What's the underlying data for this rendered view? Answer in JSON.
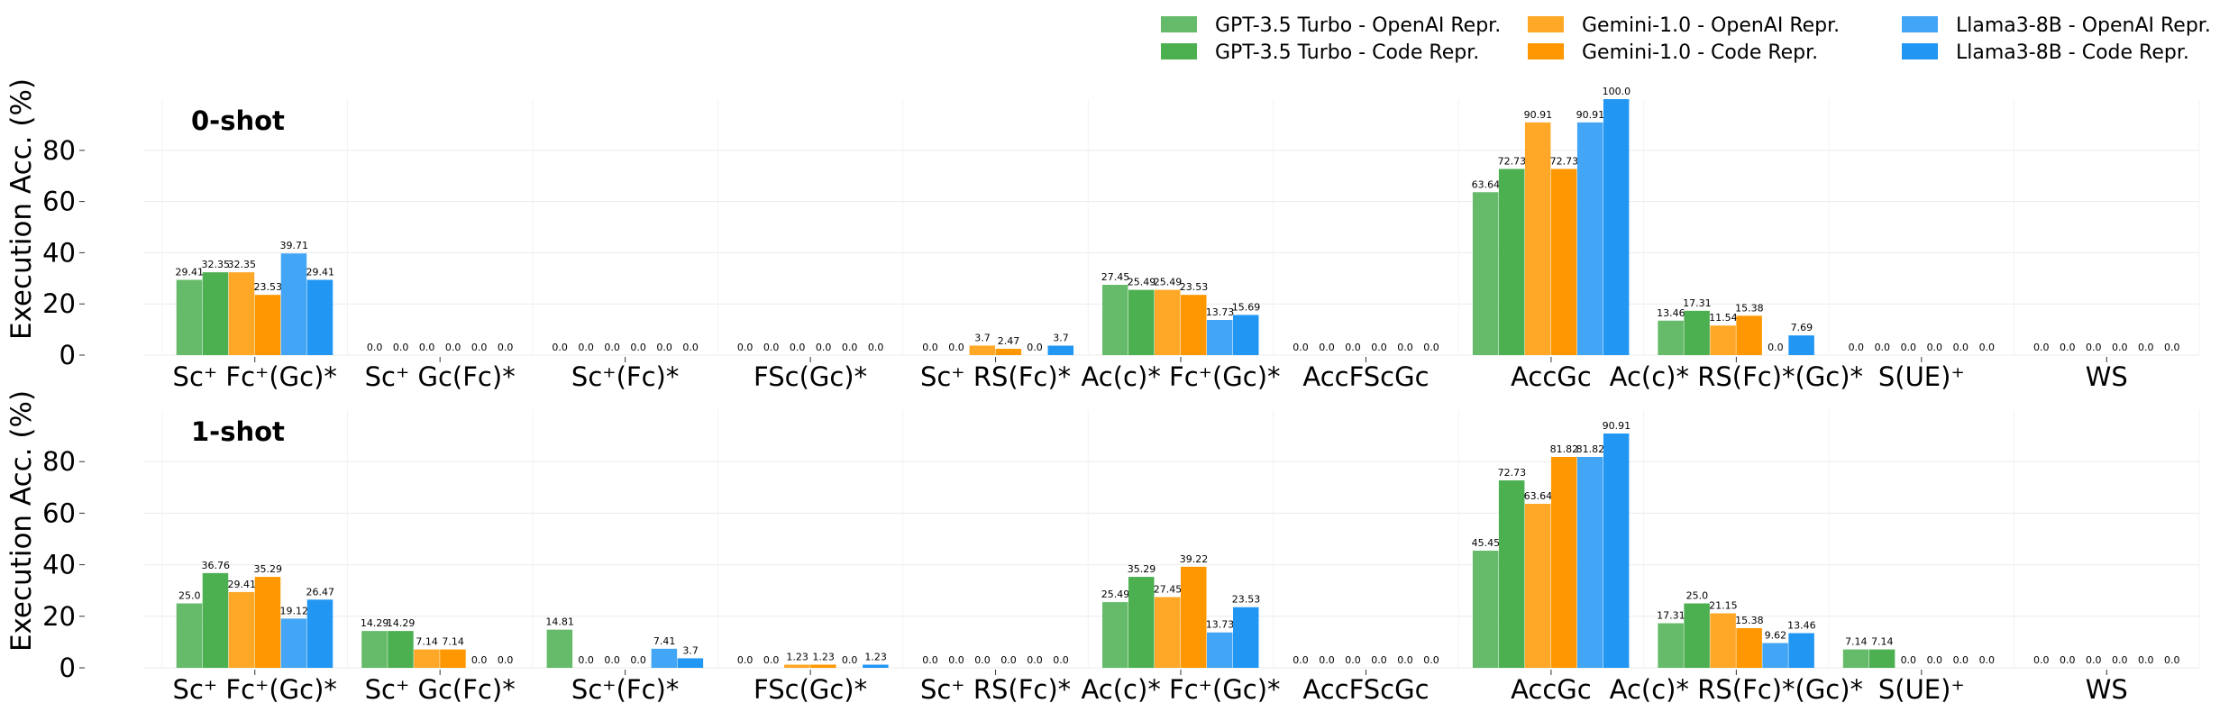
{
  "chart_data": {
    "type": "bar",
    "ylabel": "Execution Acc. (%)",
    "ylim": [
      0,
      100
    ],
    "yticks": [
      0,
      20,
      40,
      60,
      80
    ],
    "grid": true,
    "legend_position": "top-right",
    "categories": [
      "Sc⁺ Fc⁺(Gc)*",
      "Sc⁺ Gc(Fc)*",
      "Sc⁺(Fc)*",
      "FSc(Gc)*",
      "Sc⁺ RS(Fc)*",
      "Ac(c)* Fc⁺(Gc)*",
      "AccFScGc",
      "AccGc",
      "Ac(c)* RS(Fc)*(Gc)*",
      "S(UE)⁺",
      "WS"
    ],
    "series": [
      {
        "name": "GPT-3.5 Turbo - OpenAI Repr.",
        "color": "#66bb6a"
      },
      {
        "name": "GPT-3.5 Turbo - Code Repr.",
        "color": "#4caf50"
      },
      {
        "name": "Gemini-1.0 - OpenAI Repr.",
        "color": "#ffa726"
      },
      {
        "name": "Gemini-1.0 - Code Repr.",
        "color": "#ff9800"
      },
      {
        "name": "Llama3-8B - OpenAI Repr.",
        "color": "#42a5f5"
      },
      {
        "name": "Llama3-8B - Code Repr.",
        "color": "#2196f3"
      }
    ],
    "panels": [
      {
        "title": "0-shot",
        "values": [
          [
            29.41,
            32.35,
            32.35,
            23.53,
            39.71,
            29.41
          ],
          [
            0.0,
            0.0,
            0.0,
            0.0,
            0.0,
            0.0
          ],
          [
            0.0,
            0.0,
            0.0,
            0.0,
            0.0,
            0.0
          ],
          [
            0.0,
            0.0,
            0.0,
            0.0,
            0.0,
            0.0
          ],
          [
            0.0,
            0.0,
            3.7,
            2.47,
            0.0,
            3.7
          ],
          [
            27.45,
            25.49,
            25.49,
            23.53,
            13.73,
            15.69
          ],
          [
            0.0,
            0.0,
            0.0,
            0.0,
            0.0,
            0.0
          ],
          [
            63.64,
            72.73,
            90.91,
            72.73,
            90.91,
            100.0
          ],
          [
            13.46,
            17.31,
            11.54,
            15.38,
            0.0,
            7.69
          ],
          [
            0.0,
            0.0,
            0.0,
            0.0,
            0.0,
            0.0
          ],
          [
            0.0,
            0.0,
            0.0,
            0.0,
            0.0,
            0.0
          ]
        ]
      },
      {
        "title": "1-shot",
        "values": [
          [
            25.0,
            36.76,
            29.41,
            35.29,
            19.12,
            26.47
          ],
          [
            14.29,
            14.29,
            7.14,
            7.14,
            0.0,
            0.0
          ],
          [
            14.81,
            0.0,
            0.0,
            0.0,
            7.41,
            3.7
          ],
          [
            0.0,
            0.0,
            1.23,
            1.23,
            0.0,
            1.23
          ],
          [
            0.0,
            0.0,
            0.0,
            0.0,
            0.0,
            0.0
          ],
          [
            25.49,
            35.29,
            27.45,
            39.22,
            13.73,
            23.53
          ],
          [
            0.0,
            0.0,
            0.0,
            0.0,
            0.0,
            0.0
          ],
          [
            45.45,
            72.73,
            63.64,
            81.82,
            81.82,
            90.91
          ],
          [
            17.31,
            25.0,
            21.15,
            15.38,
            9.62,
            13.46
          ],
          [
            7.14,
            7.14,
            0.0,
            0.0,
            0.0,
            0.0
          ],
          [
            0.0,
            0.0,
            0.0,
            0.0,
            0.0,
            0.0
          ]
        ]
      }
    ]
  }
}
